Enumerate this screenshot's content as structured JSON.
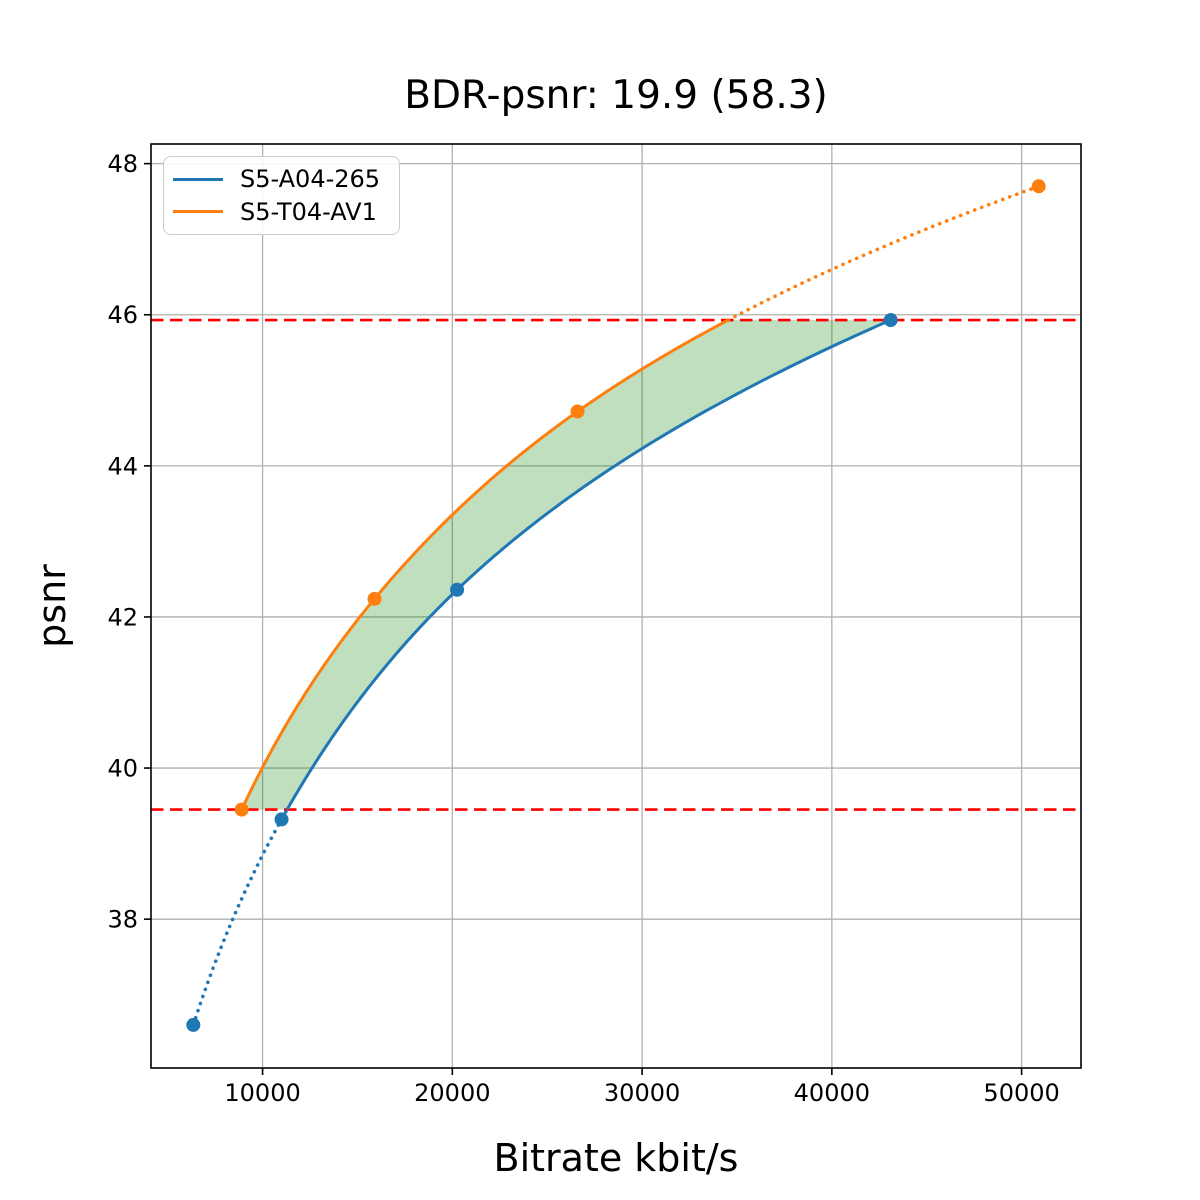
{
  "title": "BDR-psnr: 19.9 (58.3)",
  "axis": {
    "xlabel": "Bitrate kbit/s",
    "ylabel": "psnr"
  },
  "legend": {
    "items": [
      {
        "label": "S5-A04-265",
        "color": "#1f77b4"
      },
      {
        "label": "S5-T04-AV1",
        "color": "#ff7f0e"
      }
    ]
  },
  "chart_data": {
    "type": "line",
    "title": "BDR-psnr: 19.9 (58.3)",
    "xlabel": "Bitrate kbit/s",
    "ylabel": "psnr",
    "xlim": [
      4120,
      53130
    ],
    "ylim": [
      36.03,
      48.26
    ],
    "xticks": [
      10000,
      20000,
      30000,
      40000,
      50000
    ],
    "yticks": [
      38,
      40,
      42,
      44,
      46,
      48
    ],
    "grid": true,
    "grid_color": "#b0b0b0",
    "legend_position": "upper-left",
    "series": [
      {
        "name": "S5-A04-265",
        "color": "#1f77b4",
        "x": [
          6350,
          11000,
          20250,
          43100
        ],
        "y": [
          36.6,
          39.32,
          42.36,
          45.93
        ]
      },
      {
        "name": "S5-T04-AV1",
        "color": "#ff7f0e",
        "x": [
          8900,
          15900,
          26600,
          50900
        ],
        "y": [
          39.45,
          42.24,
          44.72,
          47.7
        ]
      }
    ],
    "hlines": [
      {
        "y": 45.93,
        "color": "#ff0000",
        "style": "dashed"
      },
      {
        "y": 39.45,
        "color": "#ff0000",
        "style": "dashed"
      }
    ],
    "fill_between_curves": {
      "from_psnr": 39.45,
      "to_psnr": 45.93,
      "color": "rgba(0,128,0,0.25)"
    }
  }
}
